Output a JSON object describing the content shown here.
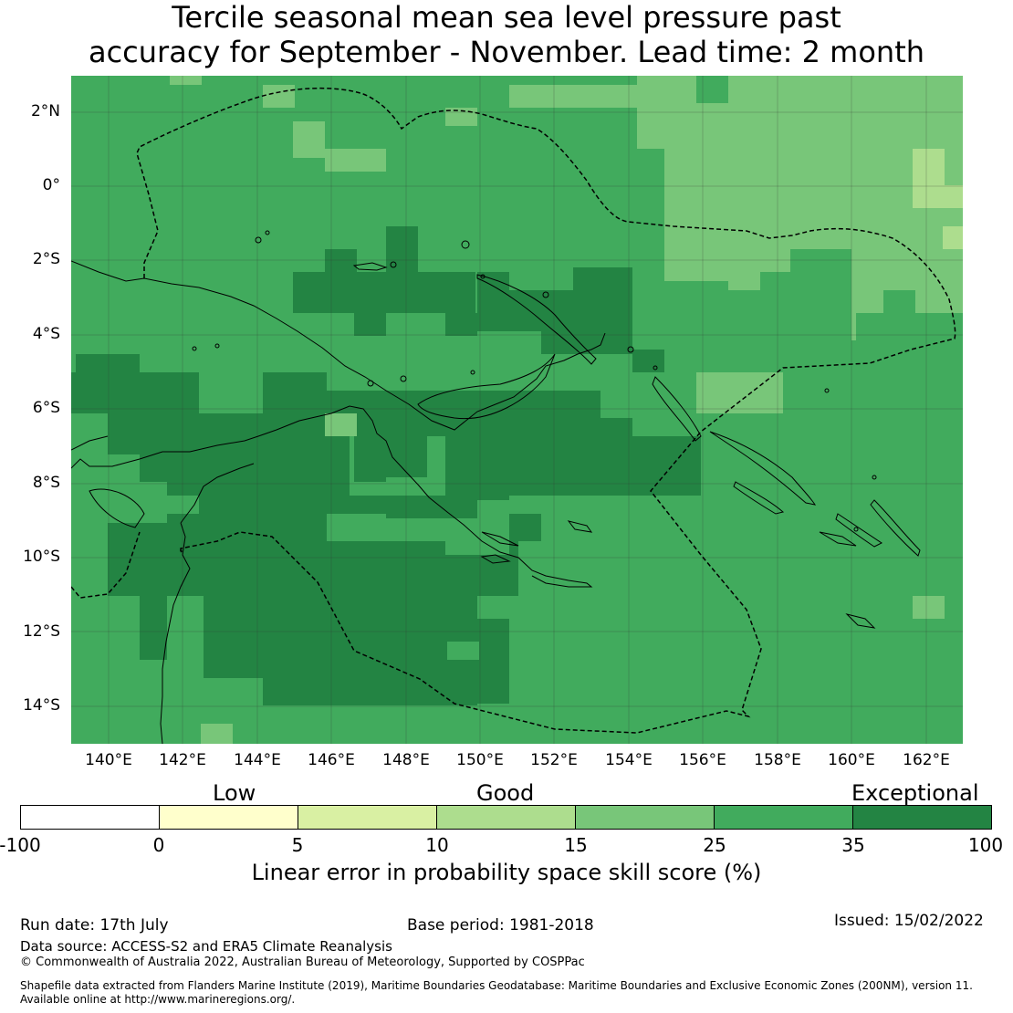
{
  "title_line1": "Tercile seasonal mean sea level pressure past",
  "title_line2": "accuracy for September - November. Lead time: 2 month",
  "lat_labels": [
    "2°N",
    "0°",
    "2°S",
    "4°S",
    "6°S",
    "8°S",
    "10°S",
    "12°S",
    "14°S"
  ],
  "lon_labels": [
    "140°E",
    "142°E",
    "144°E",
    "146°E",
    "148°E",
    "150°E",
    "152°E",
    "154°E",
    "156°E",
    "158°E",
    "160°E",
    "162°E"
  ],
  "colorbar": {
    "categories": [
      "Low",
      "Good",
      "Exceptional"
    ],
    "ticks": [
      "-100",
      "0",
      "5",
      "10",
      "15",
      "25",
      "35",
      "100"
    ],
    "colors": [
      "#ffffff",
      "#ffffcc",
      "#d9f0a3",
      "#addd8e",
      "#78c679",
      "#41ab5d",
      "#238443"
    ],
    "label": "Linear error in probability space skill score (%)"
  },
  "footer": {
    "run_date": "Run date: 17th July",
    "base_period": "Base period: 1981-2018",
    "issued": "Issued: 15/02/2022",
    "data_source": "Data source: ACCESS-S2 and ERA5 Climate Reanalysis",
    "copyright": "© Commonwealth of Australia 2022, Australian Bureau of Meteorology, Supported by COSPPac",
    "shapefile_line1": "Shapefile data extracted from Flanders Marine Institute (2019), Maritime Boundaries Geodatabase: Maritime Boundaries and Exclusive Economic Zones (200NM), version 11.",
    "shapefile_line2": "Available online at http://www.marineregions.org/."
  }
}
